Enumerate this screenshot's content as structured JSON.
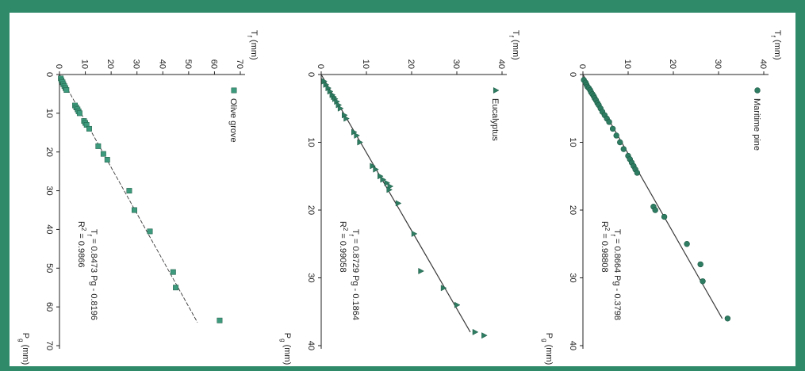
{
  "chart_data": [
    {
      "type": "scatter",
      "legend": "Maritime pine",
      "marker": "circle",
      "xlabel_base": "P",
      "xlabel_sub": "g",
      "xlabel_unit": "(mm)",
      "ylabel_base": "T",
      "ylabel_sub": "f",
      "ylabel_unit": "(mm)",
      "xlim": [
        0,
        40
      ],
      "ylim": [
        0,
        40
      ],
      "xticks": [
        "0",
        "10",
        "20",
        "30",
        "40"
      ],
      "yticks": [
        "0",
        "10",
        "20",
        "30",
        "40"
      ],
      "equation_base": "T",
      "equation_sub": "f",
      "equation_rhs": "= 0.8664 Pg - 0.3798",
      "r2_base": "R",
      "r2_sup": "2",
      "r2_value": "= 0.98808",
      "trend": {
        "slope": 0.8664,
        "intercept": -0.3798,
        "x_range": [
          0,
          36
        ]
      },
      "points": [
        [
          0.8,
          0.2
        ],
        [
          1.2,
          0.6
        ],
        [
          1.5,
          0.8
        ],
        [
          1.8,
          1.0
        ],
        [
          2.0,
          1.3
        ],
        [
          2.3,
          1.6
        ],
        [
          2.6,
          1.8
        ],
        [
          2.9,
          2.1
        ],
        [
          3.2,
          2.4
        ],
        [
          3.5,
          2.6
        ],
        [
          3.8,
          2.9
        ],
        [
          4.2,
          3.2
        ],
        [
          4.5,
          3.5
        ],
        [
          5.0,
          3.9
        ],
        [
          5.5,
          4.3
        ],
        [
          6.0,
          4.8
        ],
        [
          6.5,
          5.3
        ],
        [
          7.0,
          5.8
        ],
        [
          8.0,
          6.6
        ],
        [
          9.0,
          7.4
        ],
        [
          10.0,
          8.2
        ],
        [
          11.0,
          9.0
        ],
        [
          12.0,
          10.0
        ],
        [
          12.5,
          10.4
        ],
        [
          13.0,
          10.8
        ],
        [
          13.5,
          11.2
        ],
        [
          14.0,
          11.6
        ],
        [
          14.5,
          12.0
        ],
        [
          19.5,
          15.6
        ],
        [
          20.0,
          16.0
        ],
        [
          21.0,
          18.0
        ],
        [
          25.0,
          23.0
        ],
        [
          28.0,
          26.0
        ],
        [
          30.5,
          26.5
        ],
        [
          36.0,
          32.0
        ]
      ]
    },
    {
      "type": "scatter",
      "legend": "Eucalyptus",
      "marker": "triangle",
      "xlabel_base": "P",
      "xlabel_sub": "g",
      "xlabel_unit": "(mm)",
      "ylabel_base": "T",
      "ylabel_sub": "f",
      "ylabel_unit": "(mm)",
      "xlim": [
        0,
        40
      ],
      "ylim": [
        0,
        40
      ],
      "xticks": [
        "0",
        "10",
        "20",
        "30",
        "40"
      ],
      "yticks": [
        "0",
        "10",
        "20",
        "30",
        "40"
      ],
      "equation_base": "T",
      "equation_sub": "f",
      "equation_rhs": "= 0.8729 Pg - 0.1864",
      "r2_base": "R",
      "r2_sup": "2",
      "r2_value": "= 0.99058",
      "trend": {
        "slope": 0.8729,
        "intercept": -0.1864,
        "x_range": [
          0,
          38
        ]
      },
      "points": [
        [
          1.0,
          0.6
        ],
        [
          1.5,
          1.0
        ],
        [
          2.0,
          1.5
        ],
        [
          2.5,
          1.9
        ],
        [
          3.0,
          2.4
        ],
        [
          3.3,
          2.7
        ],
        [
          3.6,
          3.0
        ],
        [
          4.0,
          3.4
        ],
        [
          4.5,
          3.8
        ],
        [
          5.0,
          4.2
        ],
        [
          6.0,
          5.1
        ],
        [
          6.5,
          5.5
        ],
        [
          8.5,
          7.2
        ],
        [
          9.0,
          7.8
        ],
        [
          10.0,
          8.5
        ],
        [
          13.5,
          11.3
        ],
        [
          14.0,
          12.0
        ],
        [
          15.0,
          13.0
        ],
        [
          15.5,
          13.6
        ],
        [
          16.0,
          14.5
        ],
        [
          16.5,
          15.2
        ],
        [
          17.0,
          15.0
        ],
        [
          19.0,
          17.0
        ],
        [
          23.5,
          20.5
        ],
        [
          29.0,
          22.0
        ],
        [
          31.5,
          27.0
        ],
        [
          34.0,
          30.0
        ],
        [
          38.0,
          34.0
        ],
        [
          38.5,
          36.0
        ]
      ]
    },
    {
      "type": "scatter",
      "legend": "Olive grove",
      "marker": "square",
      "xlabel_base": "P",
      "xlabel_sub": "g",
      "xlabel_unit": "(mm)",
      "ylabel_base": "T",
      "ylabel_sub": "f",
      "ylabel_unit": "(mm)",
      "xlim": [
        0,
        70
      ],
      "ylim": [
        0,
        70
      ],
      "xticks": [
        "0",
        "10",
        "20",
        "30",
        "40",
        "50",
        "60",
        "70"
      ],
      "yticks": [
        "0",
        "10",
        "20",
        "30",
        "40",
        "50",
        "60",
        "70"
      ],
      "equation_base": "T",
      "equation_sub": "f",
      "equation_rhs": "= 0.8473 Pg - 0.8196",
      "r2_base": "R",
      "r2_sup": "2",
      "r2_value": "= 0.9866",
      "trend": {
        "slope": 0.8473,
        "intercept": -0.8196,
        "x_range": [
          0,
          64
        ]
      },
      "points": [
        [
          1.0,
          0.5
        ],
        [
          1.5,
          0.8
        ],
        [
          2.0,
          1.2
        ],
        [
          2.5,
          1.5
        ],
        [
          3.0,
          1.9
        ],
        [
          3.5,
          2.3
        ],
        [
          4.0,
          2.7
        ],
        [
          8.0,
          6.0
        ],
        [
          8.5,
          6.5
        ],
        [
          9.0,
          7.0
        ],
        [
          9.5,
          7.4
        ],
        [
          10.0,
          7.8
        ],
        [
          12.0,
          9.5
        ],
        [
          12.5,
          10.0
        ],
        [
          13.0,
          10.5
        ],
        [
          14.0,
          11.5
        ],
        [
          18.5,
          15.0
        ],
        [
          20.5,
          17.0
        ],
        [
          22.0,
          18.5
        ],
        [
          30.0,
          27.0
        ],
        [
          35.0,
          29.0
        ],
        [
          40.5,
          35.0
        ],
        [
          51.0,
          44.0
        ],
        [
          55.0,
          45.0
        ],
        [
          63.5,
          62.0
        ]
      ]
    }
  ]
}
